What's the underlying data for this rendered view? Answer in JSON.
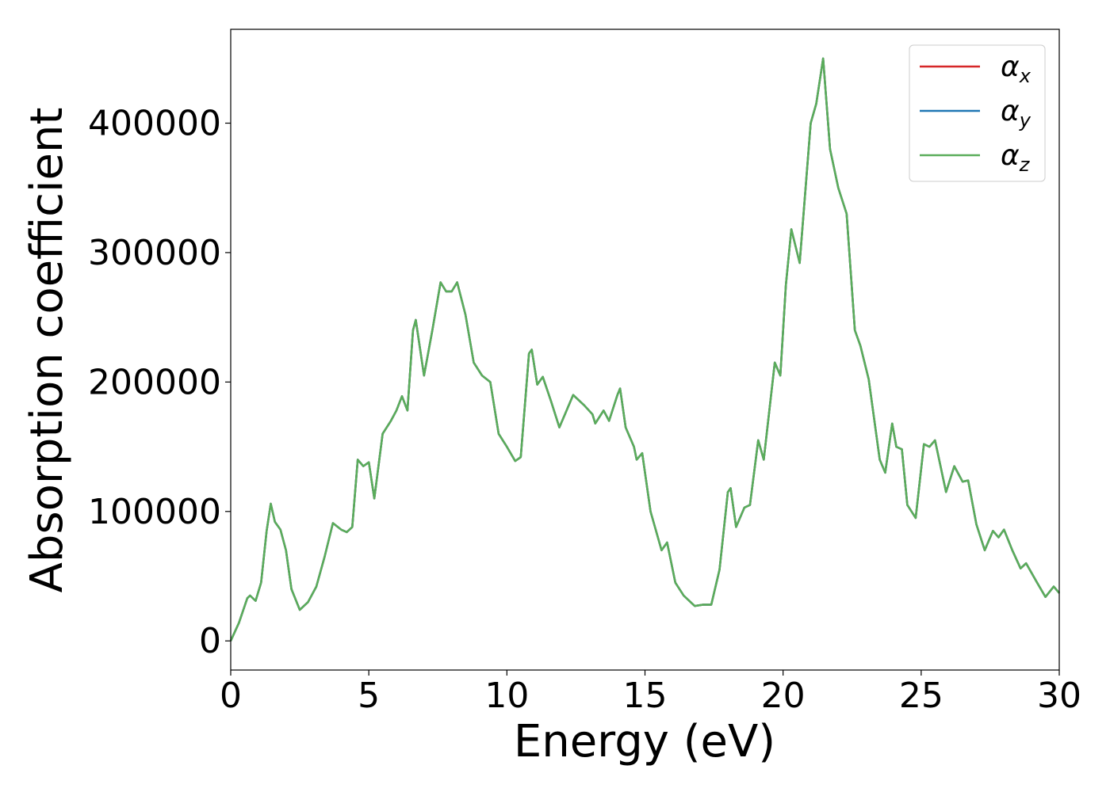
{
  "chart_data": {
    "type": "line",
    "xlabel": "Energy (eV)",
    "ylabel": "Absorption coefficient",
    "x": [
      0,
      0.3,
      0.6,
      0.7,
      0.9,
      1.1,
      1.3,
      1.45,
      1.6,
      1.8,
      2.0,
      2.2,
      2.5,
      2.8,
      3.1,
      3.4,
      3.7,
      4.0,
      4.2,
      4.4,
      4.6,
      4.8,
      5.0,
      5.2,
      5.5,
      5.8,
      6.0,
      6.2,
      6.4,
      6.6,
      6.7,
      7.0,
      7.3,
      7.6,
      7.8,
      8.0,
      8.2,
      8.5,
      8.8,
      9.1,
      9.4,
      9.7,
      10.0,
      10.3,
      10.5,
      10.8,
      10.9,
      11.1,
      11.3,
      11.6,
      11.9,
      12.1,
      12.4,
      12.8,
      13.1,
      13.2,
      13.5,
      13.7,
      14.0,
      14.1,
      14.3,
      14.6,
      14.7,
      14.9,
      15.2,
      15.6,
      15.8,
      16.1,
      16.4,
      16.8,
      17.1,
      17.4,
      17.7,
      18.0,
      18.1,
      18.3,
      18.6,
      18.8,
      19.1,
      19.3,
      19.7,
      19.9,
      20.1,
      20.3,
      20.6,
      21.0,
      21.2,
      21.45,
      21.7,
      22.0,
      22.3,
      22.6,
      22.8,
      23.1,
      23.5,
      23.7,
      23.95,
      24.1,
      24.3,
      24.5,
      24.8,
      25.1,
      25.3,
      25.5,
      25.9,
      26.2,
      26.5,
      26.7,
      27.0,
      27.3,
      27.6,
      27.8,
      28.0,
      28.3,
      28.6,
      28.8,
      29.2,
      29.5,
      29.8,
      30.0
    ],
    "series": [
      {
        "name": "αx",
        "color": "#d62728",
        "values": [
          0,
          14000,
          33000,
          35000,
          31000,
          45000,
          85000,
          106000,
          92000,
          86000,
          70000,
          40000,
          24000,
          30000,
          42000,
          65000,
          91000,
          86000,
          84000,
          88000,
          140000,
          135000,
          138000,
          110000,
          160000,
          170000,
          178000,
          189000,
          178000,
          240000,
          248000,
          205000,
          240000,
          277000,
          270000,
          270000,
          277000,
          252000,
          215000,
          205000,
          200000,
          160000,
          150000,
          139000,
          142000,
          222000,
          225000,
          198000,
          204000,
          185000,
          165000,
          175000,
          190000,
          182000,
          175000,
          168000,
          178000,
          170000,
          190000,
          195000,
          165000,
          150000,
          140000,
          145000,
          100000,
          70000,
          76000,
          45000,
          35000,
          27000,
          28000,
          28000,
          55000,
          115000,
          118000,
          88000,
          103000,
          105000,
          155000,
          140000,
          215000,
          205000,
          275000,
          318000,
          292000,
          400000,
          415000,
          450000,
          380000,
          350000,
          330000,
          240000,
          228000,
          202000,
          140000,
          130000,
          168000,
          150000,
          148000,
          105000,
          95000,
          152000,
          150000,
          155000,
          115000,
          135000,
          123000,
          124000,
          90000,
          70000,
          85000,
          80000,
          86000,
          70000,
          56000,
          60000,
          45000,
          34000,
          42000,
          37000
        ]
      },
      {
        "name": "αy",
        "color": "#1f77b4",
        "values": [
          0,
          14000,
          33000,
          35000,
          31000,
          45000,
          85000,
          106000,
          92000,
          86000,
          70000,
          40000,
          24000,
          30000,
          42000,
          65000,
          91000,
          86000,
          84000,
          88000,
          140000,
          135000,
          138000,
          110000,
          160000,
          170000,
          178000,
          189000,
          178000,
          240000,
          248000,
          205000,
          240000,
          277000,
          270000,
          270000,
          277000,
          252000,
          215000,
          205000,
          200000,
          160000,
          150000,
          139000,
          142000,
          222000,
          225000,
          198000,
          204000,
          185000,
          165000,
          175000,
          190000,
          182000,
          175000,
          168000,
          178000,
          170000,
          190000,
          195000,
          165000,
          150000,
          140000,
          145000,
          100000,
          70000,
          76000,
          45000,
          35000,
          27000,
          28000,
          28000,
          55000,
          115000,
          118000,
          88000,
          103000,
          105000,
          155000,
          140000,
          215000,
          205000,
          275000,
          318000,
          292000,
          400000,
          415000,
          450000,
          380000,
          350000,
          330000,
          240000,
          228000,
          202000,
          140000,
          130000,
          168000,
          150000,
          148000,
          105000,
          95000,
          152000,
          150000,
          155000,
          115000,
          135000,
          123000,
          124000,
          90000,
          70000,
          85000,
          80000,
          86000,
          70000,
          56000,
          60000,
          45000,
          34000,
          42000,
          37000
        ]
      },
      {
        "name": "αz",
        "color": "#5aad5a",
        "values": [
          0,
          14000,
          33000,
          35000,
          31000,
          45000,
          85000,
          106000,
          92000,
          86000,
          70000,
          40000,
          24000,
          30000,
          42000,
          65000,
          91000,
          86000,
          84000,
          88000,
          140000,
          135000,
          138000,
          110000,
          160000,
          170000,
          178000,
          189000,
          178000,
          240000,
          248000,
          205000,
          240000,
          277000,
          270000,
          270000,
          277000,
          252000,
          215000,
          205000,
          200000,
          160000,
          150000,
          139000,
          142000,
          222000,
          225000,
          198000,
          204000,
          185000,
          165000,
          175000,
          190000,
          182000,
          175000,
          168000,
          178000,
          170000,
          190000,
          195000,
          165000,
          150000,
          140000,
          145000,
          100000,
          70000,
          76000,
          45000,
          35000,
          27000,
          28000,
          28000,
          55000,
          115000,
          118000,
          88000,
          103000,
          105000,
          155000,
          140000,
          215000,
          205000,
          275000,
          318000,
          292000,
          400000,
          415000,
          450000,
          380000,
          350000,
          330000,
          240000,
          228000,
          202000,
          140000,
          130000,
          168000,
          150000,
          148000,
          105000,
          95000,
          152000,
          150000,
          155000,
          115000,
          135000,
          123000,
          124000,
          90000,
          70000,
          85000,
          80000,
          86000,
          70000,
          56000,
          60000,
          45000,
          34000,
          42000,
          37000
        ]
      }
    ],
    "xlim": [
      0,
      30
    ],
    "xticks": [
      0,
      5,
      10,
      15,
      20,
      25,
      30
    ],
    "ylim": [
      -22500,
      472500
    ],
    "yticks": [
      0,
      100000,
      200000,
      300000,
      400000
    ],
    "grid": false,
    "legend": "upper right"
  }
}
